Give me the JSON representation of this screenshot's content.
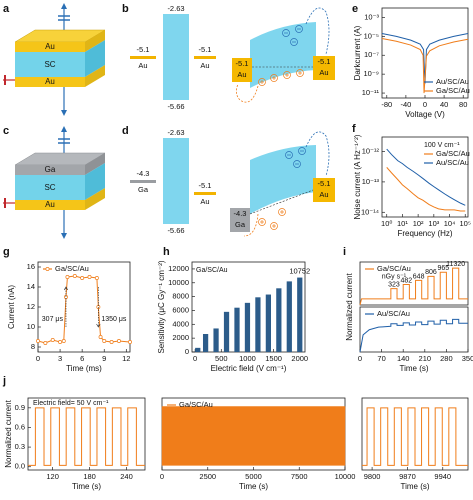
{
  "panel_labels": [
    "a",
    "b",
    "c",
    "d",
    "e",
    "f",
    "g",
    "h",
    "i",
    "j"
  ],
  "schematic_a": {
    "layers": [
      "Au",
      "SC",
      "Au"
    ]
  },
  "schematic_c": {
    "layers": [
      "Ga",
      "SC",
      "Au"
    ]
  },
  "band_b": {
    "conduction": -2.63,
    "valence": -5.66,
    "left": {
      "level": -5.1,
      "metal": "Au"
    },
    "right": {
      "level": -5.1,
      "metal": "Au"
    },
    "contact_left": {
      "level": -5.1,
      "metal": "Au"
    },
    "contact_right": {
      "level": -5.1,
      "metal": "Au"
    }
  },
  "band_d": {
    "conduction": -2.63,
    "valence": -5.66,
    "left": {
      "level": -4.3,
      "metal": "Ga"
    },
    "right": {
      "level": -5.1,
      "metal": "Au"
    },
    "contact_left": {
      "level": -4.3,
      "metal": "Ga"
    },
    "contact_right": {
      "level": -5.1,
      "metal": "Au"
    }
  },
  "chart_data": [
    {
      "type": "line",
      "ylabel": "Darkcurrent (A)",
      "xlabel": "Voltage (V)",
      "ylog": true,
      "legend": "lower right",
      "xlim": [
        -90,
        90
      ],
      "xticks": [
        -80,
        -40,
        0,
        40,
        80
      ],
      "ylim": [
        3e-12,
        0.01
      ],
      "yticks": [
        {
          "value": 0.001,
          "label": "10⁻³"
        },
        {
          "value": 1e-05,
          "label": "10⁻⁵"
        },
        {
          "value": 1e-07,
          "label": "10⁻⁷"
        },
        {
          "value": 1e-09,
          "label": "10⁻⁹"
        },
        {
          "value": 1e-11,
          "label": "10⁻¹¹"
        }
      ],
      "series": [
        {
          "name": "Au/SC/Au",
          "color": "#1f5fa8",
          "x": [
            -90,
            -60,
            -30,
            -10,
            -3,
            0,
            3,
            10,
            30,
            60,
            90
          ],
          "values": [
            2e-05,
            1e-05,
            4e-06,
            1.5e-06,
            4e-07,
            1e-10,
            4e-07,
            1.5e-06,
            4e-06,
            1e-05,
            2e-05
          ]
        },
        {
          "name": "Ga/SC/Au",
          "color": "#f07d1a",
          "x": [
            -90,
            -60,
            -30,
            -10,
            -4,
            -2,
            3,
            10,
            30,
            60,
            90
          ],
          "values": [
            6e-06,
            3e-06,
            1.2e-06,
            4e-07,
            1e-07,
            1e-11,
            8e-08,
            3e-07,
            1e-06,
            2.5e-06,
            5e-06
          ]
        }
      ]
    },
    {
      "type": "line",
      "ylabel": "Noise current (A Hz⁻¹ᐟ²)",
      "xlabel": "Frequency (Hz)",
      "xlog": true,
      "ylog": true,
      "legend": "upper right",
      "annotations": [
        "100 V cm⁻¹"
      ],
      "xlim": [
        0.5,
        150000
      ],
      "xticks": [
        {
          "value": 1,
          "label": "10⁰"
        },
        {
          "value": 10,
          "label": "10¹"
        },
        {
          "value": 100,
          "label": "10²"
        },
        {
          "value": 1000,
          "label": "10³"
        },
        {
          "value": 10000,
          "label": "10⁴"
        },
        {
          "value": 100000,
          "label": "10⁵"
        }
      ],
      "ylim": [
        7e-15,
        3e-12
      ],
      "yticks": [
        {
          "value": 1e-12,
          "label": "10⁻¹²"
        },
        {
          "value": 1e-13,
          "label": "10⁻¹³"
        },
        {
          "value": 1e-14,
          "label": "10⁻¹⁴"
        }
      ],
      "series": [
        {
          "name": "Ga/SC/Au",
          "color": "#f07d1a",
          "x": [
            1,
            2,
            5,
            10,
            20,
            50,
            100,
            200,
            500,
            1000,
            2000,
            5000,
            10000,
            20000,
            50000,
            100000
          ],
          "values": [
            3e-13,
            2e-13,
            1.2e-13,
            8e-14,
            6e-14,
            4e-14,
            3e-14,
            2.5e-14,
            1.8e-14,
            1.5e-14,
            1.3e-14,
            1.2e-14,
            1.2e-14,
            1.2e-14,
            1.1e-14,
            1.1e-14
          ]
        },
        {
          "name": "Au/SC/Au",
          "color": "#1f5fa8",
          "x": [
            1,
            2,
            5,
            10,
            20,
            50,
            100,
            200,
            500,
            1000,
            2000,
            5000,
            10000,
            20000,
            50000,
            100000
          ],
          "values": [
            1.2e-12,
            8e-13,
            5e-13,
            4e-13,
            3e-13,
            2.2e-13,
            1.7e-13,
            1.3e-13,
            9e-14,
            7e-14,
            5.5e-14,
            4e-14,
            3.2e-14,
            2.6e-14,
            2e-14,
            1.7e-14
          ]
        }
      ]
    },
    {
      "type": "line",
      "ylabel": "Current (nA)",
      "xlabel": "Time (ms)",
      "legend": "upper left",
      "marker": "o",
      "annotations": [
        "307 μs",
        "1350 μs"
      ],
      "xlim": [
        0,
        12.5
      ],
      "xticks": [
        0,
        3,
        6,
        9,
        12
      ],
      "ylim": [
        7.5,
        16.5
      ],
      "yticks": [
        8,
        10,
        12,
        14,
        16
      ],
      "series": [
        {
          "name": "Ga/SC/Au",
          "color": "#f07d1a",
          "x": [
            0,
            1,
            2,
            3,
            3.5,
            3.8,
            4,
            5,
            6,
            7,
            8,
            8.2,
            8.5,
            9,
            10,
            11,
            12.5
          ],
          "values": [
            8.6,
            8.4,
            8.7,
            8.5,
            8.6,
            13,
            15,
            15.1,
            14.9,
            15,
            14.9,
            12,
            9,
            8.6,
            8.5,
            8.6,
            8.5
          ]
        }
      ]
    },
    {
      "type": "bar",
      "ylabel": "Sensitivity (μC Gy⁻¹ cm⁻²)",
      "xlabel": "Electric field (V cm⁻¹)",
      "color": "#2c5c8a",
      "annotations": [
        "Ga/SC/Au"
      ],
      "xlim": [
        -60,
        2100
      ],
      "xticks": [
        0,
        500,
        1000,
        1500,
        2000
      ],
      "ylim": [
        0,
        13000
      ],
      "yticks": [
        0,
        2000,
        4000,
        6000,
        8000,
        10000,
        12000
      ],
      "x": [
        50,
        200,
        400,
        600,
        800,
        1000,
        1200,
        1400,
        1600,
        1800,
        2000
      ],
      "values": [
        600,
        2600,
        3400,
        5800,
        6400,
        7100,
        7900,
        8300,
        9200,
        10200,
        10752
      ]
    },
    {
      "type": "line",
      "ylabel": "Normalized current",
      "legend": "upper left",
      "annotations": [
        "nGy s⁻¹",
        "323",
        "482",
        "648",
        "806",
        "965",
        "11320"
      ],
      "xlim": [
        0,
        350
      ],
      "ylim": [
        0,
        1.05
      ],
      "series": [
        {
          "name": "Ga/SC/Au",
          "color": "#f07d1a",
          "x": [
            0,
            5,
            100,
            100,
            120,
            120,
            140,
            140,
            160,
            160,
            180,
            180,
            200,
            200,
            220,
            220,
            240,
            240,
            260,
            260,
            280,
            280,
            300,
            300,
            320,
            320,
            350
          ],
          "values": [
            0,
            0.15,
            0.15,
            0.4,
            0.4,
            0.15,
            0.15,
            0.5,
            0.5,
            0.15,
            0.15,
            0.6,
            0.6,
            0.15,
            0.15,
            0.7,
            0.7,
            0.15,
            0.15,
            0.8,
            0.8,
            0.15,
            0.15,
            0.9,
            0.9,
            0.15,
            0.15
          ]
        }
      ]
    },
    {
      "type": "line",
      "xlabel": "Time (s)",
      "legend": "upper left",
      "xlim": [
        0,
        350
      ],
      "xticks": [
        0,
        70,
        140,
        210,
        280,
        350
      ],
      "ylim": [
        0,
        1.05
      ],
      "series": [
        {
          "name": "Au/SC/Au",
          "color": "#1f5fa8",
          "x": [
            0,
            10,
            30,
            60,
            100,
            100,
            120,
            120,
            140,
            140,
            160,
            160,
            180,
            180,
            200,
            200,
            220,
            220,
            240,
            240,
            260,
            260,
            280,
            280,
            300,
            300,
            320,
            320,
            350
          ],
          "values": [
            0,
            0.4,
            0.52,
            0.58,
            0.6,
            0.66,
            0.66,
            0.62,
            0.62,
            0.68,
            0.68,
            0.63,
            0.63,
            0.7,
            0.7,
            0.64,
            0.64,
            0.72,
            0.72,
            0.65,
            0.65,
            0.74,
            0.74,
            0.66,
            0.66,
            0.76,
            0.76,
            0.67,
            0.67
          ]
        }
      ]
    },
    {
      "type": "line",
      "ylabel": "Normalized current",
      "xlabel": "Time (s)",
      "annotations": [
        "Electric field= 50 V cm⁻¹"
      ],
      "xlim": [
        80,
        270
      ],
      "xticks": [
        120,
        180,
        240
      ],
      "ylim": [
        -0.05,
        1.05
      ],
      "yticks": [
        {
          "value": 0,
          "label": "0.0"
        },
        0.3,
        0.6,
        0.9
      ],
      "series": [
        {
          "color": "#f07d1a",
          "x": [
            80,
            92,
            92,
            106,
            106,
            117,
            117,
            131,
            131,
            142,
            142,
            156,
            156,
            167,
            167,
            181,
            181,
            192,
            192,
            206,
            206,
            217,
            217,
            231,
            231,
            242,
            242,
            256,
            256,
            270
          ],
          "values": [
            0.02,
            0.02,
            0.9,
            0.9,
            0.02,
            0.02,
            0.9,
            0.9,
            0.02,
            0.02,
            0.9,
            0.9,
            0.02,
            0.02,
            0.9,
            0.9,
            0.02,
            0.02,
            0.9,
            0.9,
            0.02,
            0.02,
            0.9,
            0.9,
            0.02,
            0.02,
            0.9,
            0.9,
            0.02,
            0.02
          ]
        }
      ]
    },
    {
      "type": "band",
      "xlabel": "Time (s)",
      "legend": "upper left",
      "xlim": [
        0,
        10000
      ],
      "xticks": [
        0,
        2500,
        5000,
        7500,
        10000
      ],
      "ylim": [
        -0.05,
        1.05
      ],
      "series": [
        {
          "name": "Ga/SC/Au",
          "color": "#f07d1a",
          "x": [
            0,
            10000
          ],
          "low": [
            0.02,
            0.02
          ],
          "high": [
            0.92,
            0.92
          ]
        }
      ]
    },
    {
      "type": "line",
      "xlabel": "Time (s)",
      "xlim": [
        9780,
        9990
      ],
      "xticks": [
        9800,
        9870,
        9940
      ],
      "ylim": [
        -0.05,
        1.05
      ],
      "series": [
        {
          "color": "#f07d1a",
          "x": [
            9780,
            9790,
            9790,
            9804,
            9804,
            9817,
            9817,
            9831,
            9831,
            9844,
            9844,
            9858,
            9858,
            9871,
            9871,
            9885,
            9885,
            9898,
            9898,
            9912,
            9912,
            9925,
            9925,
            9939,
            9939,
            9952,
            9952,
            9966,
            9966,
            9990
          ],
          "values": [
            0.02,
            0.02,
            0.9,
            0.9,
            0.02,
            0.02,
            0.9,
            0.9,
            0.02,
            0.02,
            0.9,
            0.9,
            0.02,
            0.02,
            0.9,
            0.9,
            0.02,
            0.02,
            0.9,
            0.9,
            0.02,
            0.02,
            0.9,
            0.9,
            0.02,
            0.02,
            0.9,
            0.9,
            0.02,
            0.02
          ]
        }
      ]
    }
  ]
}
